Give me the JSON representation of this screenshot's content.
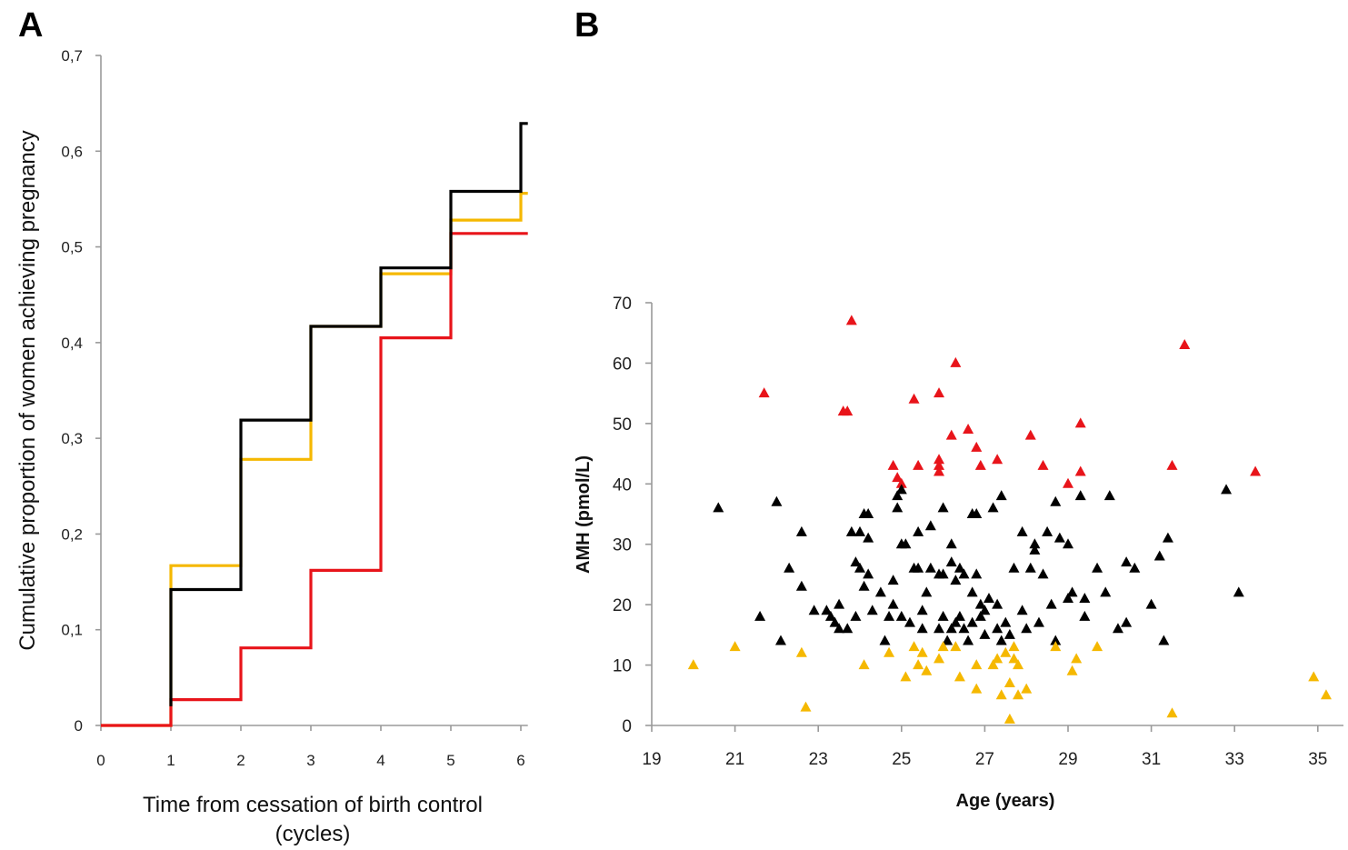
{
  "panels": {
    "a": "A",
    "b": "B"
  },
  "chart_data": [
    {
      "panel": "A",
      "type": "line",
      "step": true,
      "title": "",
      "xlabel_lines": [
        "Time from cessation of birth control",
        "(cycles)"
      ],
      "ylabel": "Cumulative proportion of women achieving pregnancy",
      "xlim": [
        0,
        6.1
      ],
      "ylim": [
        0,
        0.7
      ],
      "xticks": [
        "0",
        "1",
        "2",
        "3",
        "4",
        "5",
        "6"
      ],
      "yticks": [
        "0",
        "0,1",
        "0,2",
        "0,3",
        "0,4",
        "0,5",
        "0,6",
        "0,7"
      ],
      "grid": false,
      "series": [
        {
          "color": "#f5b800",
          "points": [
            [
              0,
              0
            ],
            [
              1,
              0
            ],
            [
              1,
              0.167
            ],
            [
              2,
              0.167
            ],
            [
              2,
              0.278
            ],
            [
              3,
              0.278
            ],
            [
              3,
              0.417
            ],
            [
              4,
              0.417
            ],
            [
              4,
              0.472
            ],
            [
              5,
              0.472
            ],
            [
              5,
              0.528
            ],
            [
              6,
              0.528
            ],
            [
              6,
              0.556
            ],
            [
              6.1,
              0.556
            ]
          ]
        },
        {
          "color": "#e8141a",
          "points": [
            [
              0,
              0
            ],
            [
              1,
              0
            ],
            [
              1,
              0.027
            ],
            [
              2,
              0.027
            ],
            [
              2,
              0.081
            ],
            [
              3,
              0.081
            ],
            [
              3,
              0.162
            ],
            [
              4,
              0.162
            ],
            [
              4,
              0.405
            ],
            [
              5,
              0.405
            ],
            [
              5,
              0.514
            ],
            [
              6.1,
              0.514
            ]
          ]
        },
        {
          "color": "#000000",
          "points": [
            [
              1,
              0.02
            ],
            [
              1,
              0.142
            ],
            [
              2,
              0.142
            ],
            [
              2,
              0.319
            ],
            [
              3,
              0.319
            ],
            [
              3,
              0.417
            ],
            [
              4,
              0.417
            ],
            [
              4,
              0.478
            ],
            [
              5,
              0.478
            ],
            [
              5,
              0.558
            ],
            [
              6,
              0.558
            ],
            [
              6,
              0.629
            ],
            [
              6.1,
              0.629
            ]
          ]
        }
      ]
    },
    {
      "panel": "B",
      "type": "scatter",
      "title": "",
      "xlabel": "Age (years)",
      "ylabel": "AMH (pmol/L)",
      "xlim": [
        19,
        36
      ],
      "ylim": [
        0,
        70
      ],
      "xticks": [
        "19",
        "21",
        "23",
        "25",
        "27",
        "29",
        "31",
        "33",
        "35"
      ],
      "yticks": [
        "0",
        "10",
        "20",
        "30",
        "40",
        "50",
        "60",
        "70"
      ],
      "grid": false,
      "marker": "triangle",
      "series": [
        {
          "color": "#e8141a",
          "points": [
            [
              21.7,
              55
            ],
            [
              23.6,
              52
            ],
            [
              23.7,
              52
            ],
            [
              23.8,
              67
            ],
            [
              24.8,
              43
            ],
            [
              24.9,
              41
            ],
            [
              25,
              40
            ],
            [
              25.3,
              54
            ],
            [
              25.4,
              43
            ],
            [
              25.9,
              55
            ],
            [
              25.9,
              44
            ],
            [
              25.9,
              43
            ],
            [
              25.9,
              42
            ],
            [
              26.2,
              48
            ],
            [
              26.3,
              60
            ],
            [
              26.6,
              49
            ],
            [
              26.8,
              46
            ],
            [
              26.9,
              43
            ],
            [
              27.3,
              44
            ],
            [
              28.1,
              48
            ],
            [
              28.4,
              43
            ],
            [
              29,
              40
            ],
            [
              29.3,
              50
            ],
            [
              29.3,
              42
            ],
            [
              31.5,
              43
            ],
            [
              31.8,
              63
            ],
            [
              33.5,
              42
            ]
          ]
        },
        {
          "color": "#000000",
          "points": [
            [
              20.6,
              36
            ],
            [
              21.6,
              18
            ],
            [
              22,
              37
            ],
            [
              22.1,
              14
            ],
            [
              22.3,
              26
            ],
            [
              22.6,
              32
            ],
            [
              22.6,
              23
            ],
            [
              22.9,
              19
            ],
            [
              23.2,
              19
            ],
            [
              23.3,
              18
            ],
            [
              23.4,
              17
            ],
            [
              23.5,
              20
            ],
            [
              23.5,
              16
            ],
            [
              23.7,
              16
            ],
            [
              23.8,
              32
            ],
            [
              23.9,
              18
            ],
            [
              23.9,
              27
            ],
            [
              24,
              26
            ],
            [
              24,
              32
            ],
            [
              24.1,
              35
            ],
            [
              24.1,
              23
            ],
            [
              24.2,
              35
            ],
            [
              24.2,
              31
            ],
            [
              24.2,
              25
            ],
            [
              24.3,
              19
            ],
            [
              24.5,
              22
            ],
            [
              24.6,
              14
            ],
            [
              24.7,
              18
            ],
            [
              24.8,
              24
            ],
            [
              24.8,
              20
            ],
            [
              24.9,
              36
            ],
            [
              24.9,
              38
            ],
            [
              25,
              39
            ],
            [
              25,
              30
            ],
            [
              25,
              18
            ],
            [
              25.1,
              30
            ],
            [
              25.2,
              17
            ],
            [
              25.3,
              26
            ],
            [
              25.4,
              32
            ],
            [
              25.4,
              26
            ],
            [
              25.5,
              19
            ],
            [
              25.5,
              16
            ],
            [
              25.6,
              22
            ],
            [
              25.7,
              26
            ],
            [
              25.7,
              33
            ],
            [
              25.9,
              25
            ],
            [
              25.9,
              16
            ],
            [
              26,
              36
            ],
            [
              26,
              18
            ],
            [
              26,
              25
            ],
            [
              26.1,
              14
            ],
            [
              26.2,
              16
            ],
            [
              26.2,
              30
            ],
            [
              26.2,
              27
            ],
            [
              26.3,
              17
            ],
            [
              26.3,
              24
            ],
            [
              26.4,
              26
            ],
            [
              26.4,
              18
            ],
            [
              26.5,
              25
            ],
            [
              26.5,
              16
            ],
            [
              26.6,
              14
            ],
            [
              26.7,
              35
            ],
            [
              26.7,
              22
            ],
            [
              26.7,
              17
            ],
            [
              26.8,
              35
            ],
            [
              26.8,
              25
            ],
            [
              26.9,
              20
            ],
            [
              26.9,
              18
            ],
            [
              27,
              15
            ],
            [
              27,
              19
            ],
            [
              27.1,
              21
            ],
            [
              27.2,
              36
            ],
            [
              27.3,
              20
            ],
            [
              27.3,
              16
            ],
            [
              27.4,
              38
            ],
            [
              27.4,
              14
            ],
            [
              27.5,
              17
            ],
            [
              27.6,
              15
            ],
            [
              27.7,
              26
            ],
            [
              27.9,
              19
            ],
            [
              27.9,
              32
            ],
            [
              28,
              16
            ],
            [
              28.1,
              26
            ],
            [
              28.2,
              29
            ],
            [
              28.2,
              30
            ],
            [
              28.3,
              17
            ],
            [
              28.4,
              25
            ],
            [
              28.5,
              32
            ],
            [
              28.6,
              20
            ],
            [
              28.7,
              37
            ],
            [
              28.7,
              14
            ],
            [
              28.8,
              31
            ],
            [
              29,
              21
            ],
            [
              29,
              30
            ],
            [
              29.1,
              22
            ],
            [
              29.3,
              38
            ],
            [
              29.4,
              18
            ],
            [
              29.4,
              21
            ],
            [
              29.7,
              26
            ],
            [
              29.9,
              22
            ],
            [
              30,
              38
            ],
            [
              30.2,
              16
            ],
            [
              30.4,
              17
            ],
            [
              30.4,
              27
            ],
            [
              30.6,
              26
            ],
            [
              31,
              20
            ],
            [
              31.2,
              28
            ],
            [
              31.3,
              14
            ],
            [
              31.4,
              31
            ],
            [
              32.8,
              39
            ],
            [
              33.1,
              22
            ]
          ]
        },
        {
          "color": "#f5b800",
          "points": [
            [
              20,
              10
            ],
            [
              21,
              13
            ],
            [
              22.6,
              12
            ],
            [
              22.7,
              3
            ],
            [
              24.1,
              10
            ],
            [
              24.7,
              12
            ],
            [
              25.1,
              8
            ],
            [
              25.3,
              13
            ],
            [
              25.4,
              10
            ],
            [
              25.5,
              12
            ],
            [
              25.6,
              9
            ],
            [
              25.9,
              11
            ],
            [
              26,
              13
            ],
            [
              26.3,
              13
            ],
            [
              26.4,
              8
            ],
            [
              26.8,
              6
            ],
            [
              26.8,
              10
            ],
            [
              27.2,
              10
            ],
            [
              27.3,
              11
            ],
            [
              27.4,
              5
            ],
            [
              27.5,
              12
            ],
            [
              27.6,
              1
            ],
            [
              27.6,
              7
            ],
            [
              27.7,
              11
            ],
            [
              27.7,
              13
            ],
            [
              27.8,
              5
            ],
            [
              27.8,
              10
            ],
            [
              28,
              6
            ],
            [
              28.7,
              13
            ],
            [
              29.1,
              9
            ],
            [
              29.2,
              11
            ],
            [
              29.7,
              13
            ],
            [
              31.5,
              2
            ],
            [
              34.9,
              8
            ],
            [
              35.2,
              5
            ]
          ]
        }
      ]
    }
  ]
}
